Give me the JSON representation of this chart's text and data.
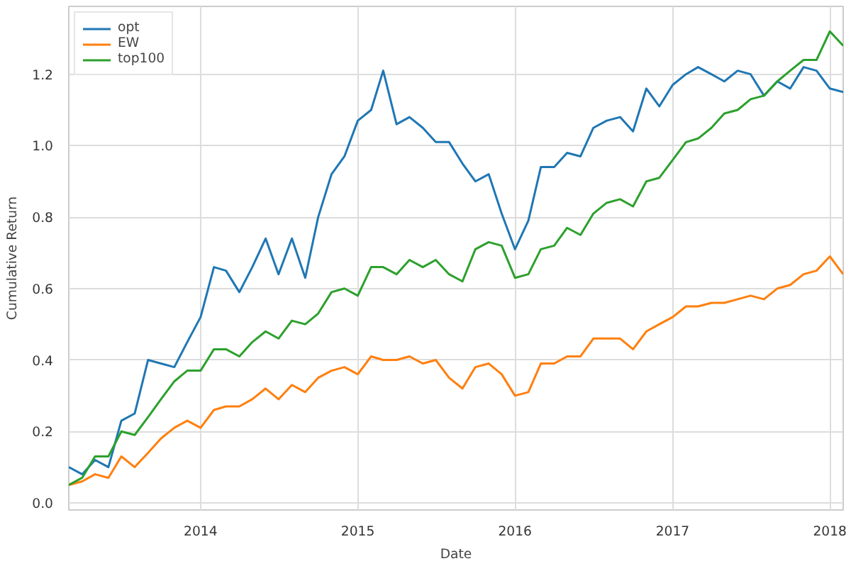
{
  "chart_data": {
    "type": "line",
    "xlabel": "Date",
    "ylabel": "Cumulative Return",
    "x": [
      "2013-03",
      "2013-04",
      "2013-05",
      "2013-06",
      "2013-07",
      "2013-08",
      "2013-09",
      "2013-10",
      "2013-11",
      "2013-12",
      "2014-01",
      "2014-02",
      "2014-03",
      "2014-04",
      "2014-05",
      "2014-06",
      "2014-07",
      "2014-08",
      "2014-09",
      "2014-10",
      "2014-11",
      "2014-12",
      "2015-01",
      "2015-02",
      "2015-03",
      "2015-04",
      "2015-05",
      "2015-06",
      "2015-07",
      "2015-08",
      "2015-09",
      "2015-10",
      "2015-11",
      "2015-12",
      "2016-01",
      "2016-02",
      "2016-03",
      "2016-04",
      "2016-05",
      "2016-06",
      "2016-07",
      "2016-08",
      "2016-09",
      "2016-10",
      "2016-11",
      "2016-12",
      "2017-01",
      "2017-02",
      "2017-03",
      "2017-04",
      "2017-05",
      "2017-06",
      "2017-07",
      "2017-08",
      "2017-09",
      "2017-10",
      "2017-11",
      "2017-12",
      "2018-01",
      "2018-02"
    ],
    "series": [
      {
        "name": "opt",
        "color": "#1f77b4",
        "values": [
          0.1,
          0.08,
          0.12,
          0.1,
          0.23,
          0.25,
          0.4,
          0.39,
          0.38,
          0.45,
          0.52,
          0.66,
          0.65,
          0.59,
          0.66,
          0.74,
          0.64,
          0.74,
          0.63,
          0.8,
          0.92,
          0.97,
          1.07,
          1.1,
          1.21,
          1.06,
          1.08,
          1.05,
          1.01,
          1.01,
          0.95,
          0.9,
          0.92,
          0.81,
          0.71,
          0.79,
          0.94,
          0.94,
          0.98,
          0.97,
          1.05,
          1.07,
          1.08,
          1.04,
          1.16,
          1.11,
          1.17,
          1.2,
          1.22,
          1.2,
          1.18,
          1.21,
          1.2,
          1.14,
          1.18,
          1.16,
          1.22,
          1.21,
          1.16,
          1.15
        ]
      },
      {
        "name": "EW",
        "color": "#ff7f0e",
        "values": [
          0.05,
          0.06,
          0.08,
          0.07,
          0.13,
          0.1,
          0.14,
          0.18,
          0.21,
          0.23,
          0.21,
          0.26,
          0.27,
          0.27,
          0.29,
          0.32,
          0.29,
          0.33,
          0.31,
          0.35,
          0.37,
          0.38,
          0.36,
          0.41,
          0.4,
          0.4,
          0.41,
          0.39,
          0.4,
          0.35,
          0.32,
          0.38,
          0.39,
          0.36,
          0.3,
          0.31,
          0.39,
          0.39,
          0.41,
          0.41,
          0.46,
          0.46,
          0.46,
          0.43,
          0.48,
          0.5,
          0.52,
          0.55,
          0.55,
          0.56,
          0.56,
          0.57,
          0.58,
          0.57,
          0.6,
          0.61,
          0.64,
          0.65,
          0.69,
          0.64
        ]
      },
      {
        "name": "top100",
        "color": "#2ca02c",
        "values": [
          0.05,
          0.07,
          0.13,
          0.13,
          0.2,
          0.19,
          0.24,
          0.29,
          0.34,
          0.37,
          0.37,
          0.43,
          0.43,
          0.41,
          0.45,
          0.48,
          0.46,
          0.51,
          0.5,
          0.53,
          0.59,
          0.6,
          0.58,
          0.66,
          0.66,
          0.64,
          0.68,
          0.66,
          0.68,
          0.64,
          0.62,
          0.71,
          0.73,
          0.72,
          0.63,
          0.64,
          0.71,
          0.72,
          0.77,
          0.75,
          0.81,
          0.84,
          0.85,
          0.83,
          0.9,
          0.91,
          0.96,
          1.01,
          1.02,
          1.05,
          1.09,
          1.1,
          1.13,
          1.14,
          1.18,
          1.21,
          1.24,
          1.24,
          1.32,
          1.28
        ]
      }
    ],
    "xlim": [
      "2013-03",
      "2018-02"
    ],
    "xticks": [
      {
        "value": "2014-01",
        "label": "2014"
      },
      {
        "value": "2015-01",
        "label": "2015"
      },
      {
        "value": "2016-01",
        "label": "2016"
      },
      {
        "value": "2017-01",
        "label": "2017"
      },
      {
        "value": "2018-01",
        "label": "2018"
      }
    ],
    "ylim": [
      -0.02,
      1.39
    ],
    "yticks": [
      {
        "value": 0,
        "label": "0.0"
      },
      {
        "value": 0.2,
        "label": "0.2"
      },
      {
        "value": 0.4,
        "label": "0.4"
      },
      {
        "value": 0.6,
        "label": "0.6"
      },
      {
        "value": 0.8,
        "label": "0.8"
      },
      {
        "value": 1.0,
        "label": "1.0"
      },
      {
        "value": 1.2,
        "label": "1.2"
      }
    ],
    "grid": true,
    "legend": "top left",
    "marker": "none",
    "line_style": "solid"
  }
}
